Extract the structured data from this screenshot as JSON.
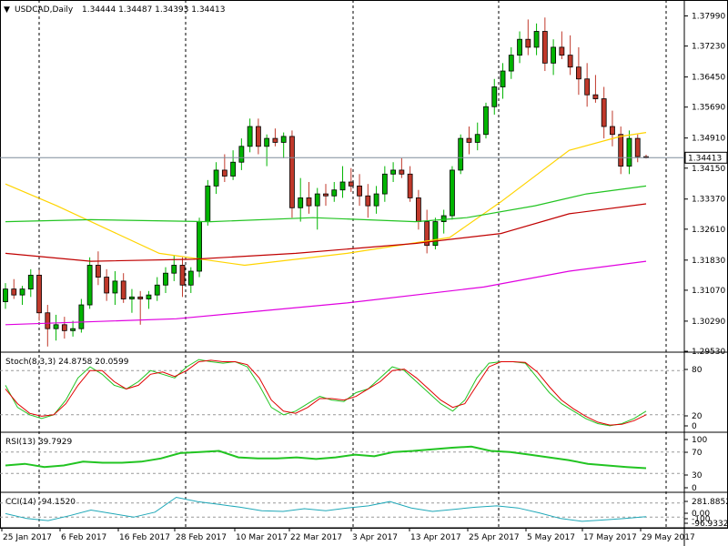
{
  "header": {
    "symbol": "USDCAD,Daily",
    "ohlc": "1.34444 1.34487 1.34393 1.34413",
    "menu_icon": "triangle-down-icon"
  },
  "colors": {
    "bull": "#00b400",
    "bear": "#c0392b",
    "ma_yellow": "#ffd400",
    "ma_green": "#22c422",
    "ma_red": "#c00000",
    "ma_magenta": "#e000e0",
    "stoch_main": "#22c422",
    "stoch_signal": "#e00000",
    "rsi": "#22c422",
    "cci": "#1fa8b8",
    "price_line": "#7f8c9a"
  },
  "chart_data": [
    {
      "type": "candlestick",
      "title": "USDCAD,Daily",
      "ylim": [
        1.2953,
        1.383
      ],
      "price_ticks": [
        "1.37990",
        "1.37230",
        "1.36450",
        "1.35690",
        "1.34910",
        "1.34150",
        "1.33370",
        "1.32610",
        "1.31830",
        "1.31070",
        "1.30290",
        "1.29530"
      ],
      "current_price": "1.34413",
      "x_labels": [
        "25 Jan 2017",
        "6 Feb 2017",
        "16 Feb 2017",
        "28 Feb 2017",
        "10 Mar 2017",
        "22 Mar 2017",
        "3 Apr 2017",
        "13 Apr 2017",
        "25 Apr 2017",
        "5 May 2017",
        "17 May 2017",
        "29 May 2017"
      ],
      "ohlc": [
        [
          1.3078,
          1.3125,
          1.306,
          1.311
        ],
        [
          1.311,
          1.3135,
          1.3085,
          1.3095
        ],
        [
          1.3095,
          1.3118,
          1.307,
          1.311
        ],
        [
          1.311,
          1.316,
          1.309,
          1.3145
        ],
        [
          1.3145,
          1.3158,
          1.303,
          1.305
        ],
        [
          1.305,
          1.307,
          1.2965,
          1.301
        ],
        [
          1.301,
          1.3045,
          1.298,
          1.302
        ],
        [
          1.302,
          1.304,
          1.2985,
          1.3005
        ],
        [
          1.3005,
          1.303,
          1.299,
          1.301
        ],
        [
          1.301,
          1.3085,
          1.3,
          1.307
        ],
        [
          1.307,
          1.319,
          1.306,
          1.317
        ],
        [
          1.317,
          1.3205,
          1.312,
          1.314
        ],
        [
          1.314,
          1.316,
          1.308,
          1.31
        ],
        [
          1.31,
          1.3155,
          1.307,
          1.313
        ],
        [
          1.313,
          1.315,
          1.3075,
          1.3085
        ],
        [
          1.3085,
          1.311,
          1.305,
          1.309
        ],
        [
          1.309,
          1.3105,
          1.302,
          1.3085
        ],
        [
          1.3085,
          1.3105,
          1.306,
          1.3095
        ],
        [
          1.3095,
          1.314,
          1.308,
          1.312
        ],
        [
          1.312,
          1.3165,
          1.31,
          1.315
        ],
        [
          1.315,
          1.3195,
          1.313,
          1.317
        ],
        [
          1.317,
          1.319,
          1.309,
          1.312
        ],
        [
          1.312,
          1.3165,
          1.31,
          1.3155
        ],
        [
          1.3155,
          1.329,
          1.314,
          1.328
        ],
        [
          1.328,
          1.3385,
          1.327,
          1.337
        ],
        [
          1.337,
          1.343,
          1.335,
          1.341
        ],
        [
          1.341,
          1.345,
          1.338,
          1.3395
        ],
        [
          1.3395,
          1.346,
          1.3385,
          1.343
        ],
        [
          1.343,
          1.349,
          1.341,
          1.347
        ],
        [
          1.347,
          1.354,
          1.3455,
          1.352
        ],
        [
          1.352,
          1.354,
          1.345,
          1.347
        ],
        [
          1.347,
          1.35,
          1.342,
          1.349
        ],
        [
          1.349,
          1.3515,
          1.347,
          1.348
        ],
        [
          1.348,
          1.3505,
          1.344,
          1.3495
        ],
        [
          1.3495,
          1.351,
          1.329,
          1.3315
        ],
        [
          1.3315,
          1.339,
          1.328,
          1.334
        ],
        [
          1.334,
          1.338,
          1.33,
          1.332
        ],
        [
          1.332,
          1.3365,
          1.326,
          1.335
        ],
        [
          1.335,
          1.3375,
          1.332,
          1.3345
        ],
        [
          1.3345,
          1.338,
          1.333,
          1.336
        ],
        [
          1.336,
          1.342,
          1.334,
          1.338
        ],
        [
          1.338,
          1.3415,
          1.3355,
          1.337
        ],
        [
          1.337,
          1.34,
          1.332,
          1.3345
        ],
        [
          1.3345,
          1.3375,
          1.329,
          1.332
        ],
        [
          1.332,
          1.337,
          1.33,
          1.335
        ],
        [
          1.335,
          1.342,
          1.333,
          1.34
        ],
        [
          1.34,
          1.343,
          1.338,
          1.341
        ],
        [
          1.341,
          1.344,
          1.339,
          1.34
        ],
        [
          1.34,
          1.342,
          1.333,
          1.334
        ],
        [
          1.334,
          1.336,
          1.326,
          1.328
        ],
        [
          1.328,
          1.331,
          1.32,
          1.322
        ],
        [
          1.322,
          1.329,
          1.321,
          1.328
        ],
        [
          1.328,
          1.331,
          1.325,
          1.3295
        ],
        [
          1.3295,
          1.342,
          1.3285,
          1.341
        ],
        [
          1.341,
          1.35,
          1.34,
          1.349
        ],
        [
          1.349,
          1.352,
          1.345,
          1.348
        ],
        [
          1.348,
          1.353,
          1.346,
          1.35
        ],
        [
          1.35,
          1.358,
          1.349,
          1.357
        ],
        [
          1.357,
          1.364,
          1.355,
          1.362
        ],
        [
          1.362,
          1.368,
          1.359,
          1.366
        ],
        [
          1.366,
          1.372,
          1.364,
          1.37
        ],
        [
          1.37,
          1.376,
          1.368,
          1.374
        ],
        [
          1.374,
          1.379,
          1.37,
          1.372
        ],
        [
          1.372,
          1.378,
          1.37,
          1.376
        ],
        [
          1.376,
          1.3795,
          1.366,
          1.368
        ],
        [
          1.368,
          1.374,
          1.365,
          1.372
        ],
        [
          1.372,
          1.376,
          1.369,
          1.37
        ],
        [
          1.37,
          1.375,
          1.365,
          1.367
        ],
        [
          1.367,
          1.372,
          1.36,
          1.364
        ],
        [
          1.364,
          1.368,
          1.357,
          1.36
        ],
        [
          1.36,
          1.365,
          1.358,
          1.359
        ],
        [
          1.359,
          1.362,
          1.349,
          1.352
        ],
        [
          1.352,
          1.356,
          1.347,
          1.35
        ],
        [
          1.35,
          1.352,
          1.34,
          1.342
        ],
        [
          1.342,
          1.351,
          1.34,
          1.349
        ],
        [
          1.349,
          1.35,
          1.343,
          1.3444
        ],
        [
          1.3444,
          1.3449,
          1.3439,
          1.3441
        ]
      ],
      "moving_averages": [
        {
          "color": "ma_yellow",
          "points": [
            [
              0,
              1.3375
            ],
            [
              6,
              1.332
            ],
            [
              18,
              1.32
            ],
            [
              28,
              1.317
            ],
            [
              40,
              1.32
            ],
            [
              52,
              1.324
            ],
            [
              58,
              1.333
            ],
            [
              66,
              1.346
            ],
            [
              72,
              1.3495
            ],
            [
              75,
              1.3505
            ]
          ]
        },
        {
          "color": "ma_green",
          "points": [
            [
              0,
              1.328
            ],
            [
              10,
              1.3285
            ],
            [
              24,
              1.328
            ],
            [
              36,
              1.329
            ],
            [
              48,
              1.328
            ],
            [
              54,
              1.329
            ],
            [
              62,
              1.332
            ],
            [
              68,
              1.335
            ],
            [
              75,
              1.337
            ]
          ]
        },
        {
          "color": "ma_red",
          "points": [
            [
              0,
              1.32
            ],
            [
              10,
              1.318
            ],
            [
              22,
              1.3185
            ],
            [
              34,
              1.32
            ],
            [
              48,
              1.3225
            ],
            [
              58,
              1.325
            ],
            [
              66,
              1.33
            ],
            [
              75,
              1.3325
            ]
          ]
        },
        {
          "color": "ma_magenta",
          "points": [
            [
              0,
              1.302
            ],
            [
              20,
              1.3035
            ],
            [
              40,
              1.3075
            ],
            [
              56,
              1.3115
            ],
            [
              66,
              1.3155
            ],
            [
              75,
              1.318
            ]
          ]
        }
      ]
    },
    {
      "type": "line",
      "title": "Stoch(8,3,3) 24.8758 20.0599",
      "ylim": [
        0,
        100
      ],
      "ticks": [
        "80",
        "20",
        "0"
      ],
      "series": [
        {
          "color": "stoch_main",
          "values": [
            60,
            30,
            20,
            15,
            20,
            40,
            70,
            85,
            75,
            60,
            55,
            65,
            80,
            75,
            70,
            85,
            95,
            92,
            90,
            92,
            85,
            60,
            30,
            20,
            25,
            35,
            45,
            40,
            38,
            50,
            55,
            70,
            85,
            80,
            65,
            50,
            35,
            25,
            40,
            70,
            90,
            92,
            92,
            90,
            70,
            50,
            35,
            25,
            15,
            8,
            5,
            8,
            15,
            24.88
          ]
        },
        {
          "color": "stoch_signal",
          "values": [
            55,
            35,
            22,
            18,
            20,
            35,
            60,
            80,
            80,
            65,
            55,
            60,
            75,
            78,
            72,
            80,
            92,
            94,
            92,
            92,
            88,
            70,
            40,
            25,
            22,
            30,
            42,
            42,
            40,
            45,
            55,
            65,
            80,
            82,
            70,
            55,
            40,
            30,
            35,
            60,
            85,
            92,
            92,
            91,
            78,
            58,
            40,
            28,
            18,
            10,
            6,
            7,
            12,
            20.06
          ]
        }
      ]
    },
    {
      "type": "line",
      "title": "RSI(13) 39.7929",
      "ylim": [
        0,
        100
      ],
      "ticks": [
        "100",
        "70",
        "30",
        "0"
      ],
      "series": [
        {
          "color": "rsi",
          "values": [
            45,
            48,
            42,
            45,
            52,
            50,
            50,
            52,
            58,
            68,
            70,
            72,
            60,
            58,
            58,
            60,
            57,
            60,
            65,
            62,
            70,
            72,
            75,
            78,
            80,
            72,
            70,
            65,
            60,
            55,
            48,
            45,
            42,
            39.79
          ]
        }
      ]
    },
    {
      "type": "line",
      "title": "CCI(14) -94.1520",
      "ylim": [
        -200,
        200
      ],
      "ticks": [
        "281.8852",
        "0.00",
        "-100",
        "-96.9332"
      ],
      "series": [
        {
          "color": "cci",
          "values": [
            -50,
            -120,
            -150,
            -80,
            0,
            -50,
            -100,
            -30,
            180,
            120,
            80,
            40,
            -10,
            -20,
            20,
            -10,
            30,
            60,
            120,
            30,
            -20,
            10,
            40,
            60,
            30,
            -40,
            -120,
            -160,
            -140,
            -120,
            -94.15
          ]
        }
      ]
    }
  ]
}
